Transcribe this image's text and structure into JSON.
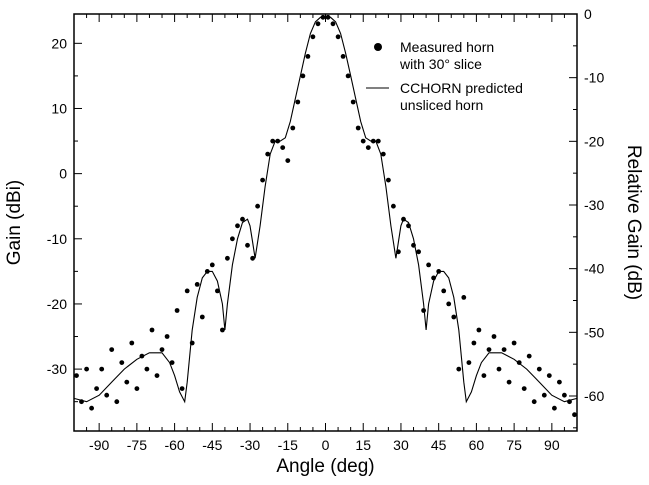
{
  "chart_data": {
    "type": "line",
    "title": "",
    "xlabel": "Angle (deg)",
    "ylabel": "Gain (dBi)",
    "y2label": "Relative Gain (dB)",
    "xlim": [
      -100,
      100
    ],
    "ylim": [
      -39.5,
      24.5
    ],
    "y2lim": [
      -65.5,
      0
    ],
    "xticks": [
      -90,
      -75,
      -60,
      -45,
      -30,
      -15,
      0,
      15,
      30,
      45,
      60,
      75,
      90
    ],
    "yticks": [
      20,
      10,
      0,
      -10,
      -20,
      -30
    ],
    "y2ticks": [
      0,
      -10,
      -20,
      -30,
      -40,
      -50,
      -60
    ],
    "grid": false,
    "legend_position": "top-right",
    "series": [
      {
        "name": "Measured horn with 30° slice",
        "legend_lines": [
          "Measured horn",
          "with 30° slice"
        ],
        "style": "markers",
        "x": [
          -99,
          -97,
          -95,
          -93,
          -91,
          -89,
          -87,
          -85,
          -83,
          -81,
          -79,
          -77,
          -75,
          -73,
          -71,
          -69,
          -67,
          -65,
          -63,
          -61,
          -59,
          -57,
          -55,
          -53,
          -51,
          -49,
          -47,
          -45,
          -43,
          -41,
          -39,
          -37,
          -35,
          -33,
          -31,
          -29,
          -27,
          -25,
          -23,
          -21,
          -19,
          -17,
          -15,
          -13,
          -11,
          -9,
          -7,
          -5,
          -3,
          -1,
          1,
          3,
          5,
          7,
          9,
          11,
          13,
          15,
          17,
          19,
          21,
          23,
          25,
          27,
          29,
          31,
          33,
          35,
          37,
          39,
          41,
          43,
          45,
          47,
          49,
          51,
          53,
          55,
          57,
          59,
          61,
          63,
          65,
          67,
          69,
          71,
          73,
          75,
          77,
          79,
          81,
          83,
          85,
          87,
          89,
          91,
          93,
          95,
          97,
          99
        ],
        "y": [
          -31,
          -35,
          -30,
          -36,
          -33,
          -30,
          -34,
          -27,
          -35,
          -29,
          -32,
          -26,
          -33,
          -28,
          -30,
          -24,
          -31,
          -27,
          -25,
          -29,
          -21,
          -33,
          -18,
          -26,
          -17,
          -22,
          -15,
          -14,
          -18,
          -24,
          -13,
          -10,
          -8,
          -7,
          -11,
          -13,
          -5,
          -1,
          3,
          5,
          5,
          4,
          2,
          7,
          11,
          15,
          18,
          21,
          23,
          24,
          24,
          23,
          21,
          18,
          15,
          11,
          7,
          5,
          4,
          5,
          5,
          3,
          -1,
          -5,
          -12,
          -7,
          -8,
          -11,
          -12,
          -21,
          -14,
          -16,
          -15,
          -18,
          -20,
          -22,
          -30,
          -19,
          -29,
          -26,
          -24,
          -31,
          -27,
          -25,
          -30,
          -27,
          -32,
          -26,
          -29,
          -33,
          -28,
          -35,
          -30,
          -34,
          -31,
          -36,
          -32,
          -34,
          -35,
          -37
        ]
      },
      {
        "name": "CCHORN predicted unsliced horn",
        "legend_lines": [
          "CCHORN predicted",
          "unsliced horn"
        ],
        "style": "line",
        "x": [
          -100,
          -95,
          -90,
          -85,
          -80,
          -75,
          -70,
          -65,
          -62,
          -60,
          -58,
          -56,
          -55,
          -53,
          -51,
          -49,
          -47,
          -45,
          -43,
          -41,
          -40,
          -39,
          -37,
          -35,
          -33,
          -31,
          -30,
          -29,
          -28,
          -26,
          -24,
          -22,
          -20,
          -18,
          -16,
          -14,
          -12,
          -10,
          -8,
          -6,
          -4,
          -2,
          0,
          2,
          4,
          6,
          8,
          10,
          12,
          14,
          16,
          18,
          20,
          22,
          24,
          26,
          28,
          29,
          30,
          31,
          33,
          35,
          37,
          39,
          40,
          41,
          43,
          45,
          47,
          49,
          51,
          53,
          55,
          56,
          58,
          60,
          62,
          65,
          70,
          75,
          80,
          85,
          90,
          95,
          100
        ],
        "y": [
          -34.5,
          -35,
          -34,
          -32,
          -30,
          -28.5,
          -27.5,
          -27.5,
          -29,
          -31,
          -33.5,
          -35,
          -32,
          -24,
          -19,
          -16,
          -15,
          -15,
          -16.5,
          -20,
          -24,
          -20,
          -14,
          -10,
          -7.5,
          -7,
          -8,
          -10.5,
          -13,
          -8,
          -2,
          3,
          5,
          5,
          5.5,
          8,
          11.5,
          15,
          18.5,
          21.5,
          23.3,
          24,
          24.2,
          24,
          23.3,
          21.5,
          18.5,
          15,
          11.5,
          8,
          5.5,
          5,
          5,
          3,
          -2,
          -8,
          -13,
          -10.5,
          -8,
          -7,
          -7.5,
          -10,
          -14,
          -20,
          -24,
          -20,
          -16.5,
          -15,
          -15,
          -16,
          -19,
          -24,
          -32,
          -35,
          -33.5,
          -31,
          -29,
          -27.5,
          -27.5,
          -28.5,
          -30,
          -32,
          -34,
          -35,
          -34.5
        ]
      }
    ]
  }
}
